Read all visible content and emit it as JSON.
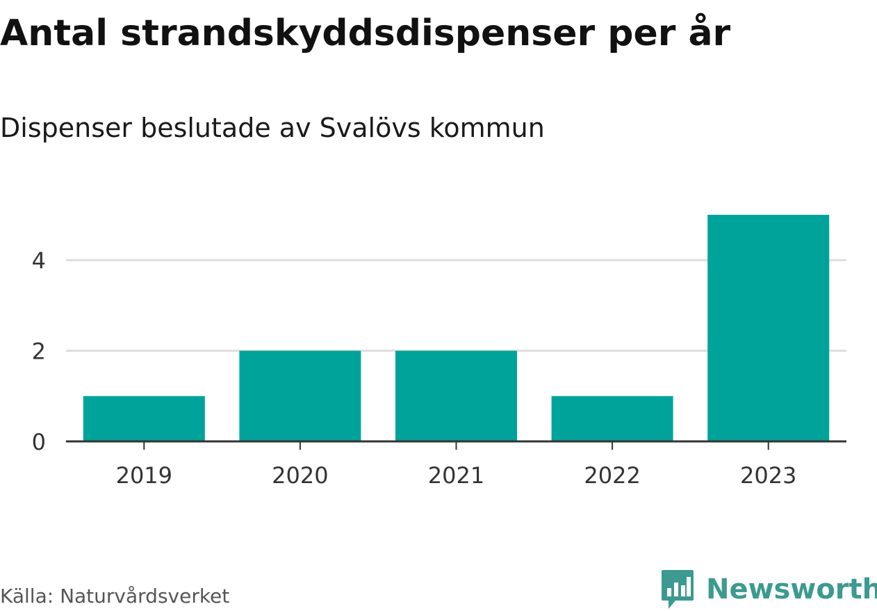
{
  "header": {
    "title": "Antal strandskyddsdispenser per år",
    "subtitle": "Dispenser beslutade av Svalövs kommun"
  },
  "footer": {
    "source": "Källa: Naturvårdsverket",
    "brand": "Newsworthy",
    "brand_icon": "newsworthy-logo-icon"
  },
  "colors": {
    "bar": "#00a39a",
    "grid": "#dddddd",
    "axis": "#333333",
    "brand": "#3c9a90"
  },
  "chart_data": {
    "type": "bar",
    "title": "Antal strandskyddsdispenser per år",
    "subtitle": "Dispenser beslutade av Svalövs kommun",
    "categories": [
      "2019",
      "2020",
      "2021",
      "2022",
      "2023"
    ],
    "values": [
      1,
      2,
      2,
      1,
      5
    ],
    "yticks": [
      0,
      2,
      4
    ],
    "ylim": [
      0,
      5
    ],
    "xlabel": "",
    "ylabel": "",
    "grid": true,
    "legend": "none"
  }
}
